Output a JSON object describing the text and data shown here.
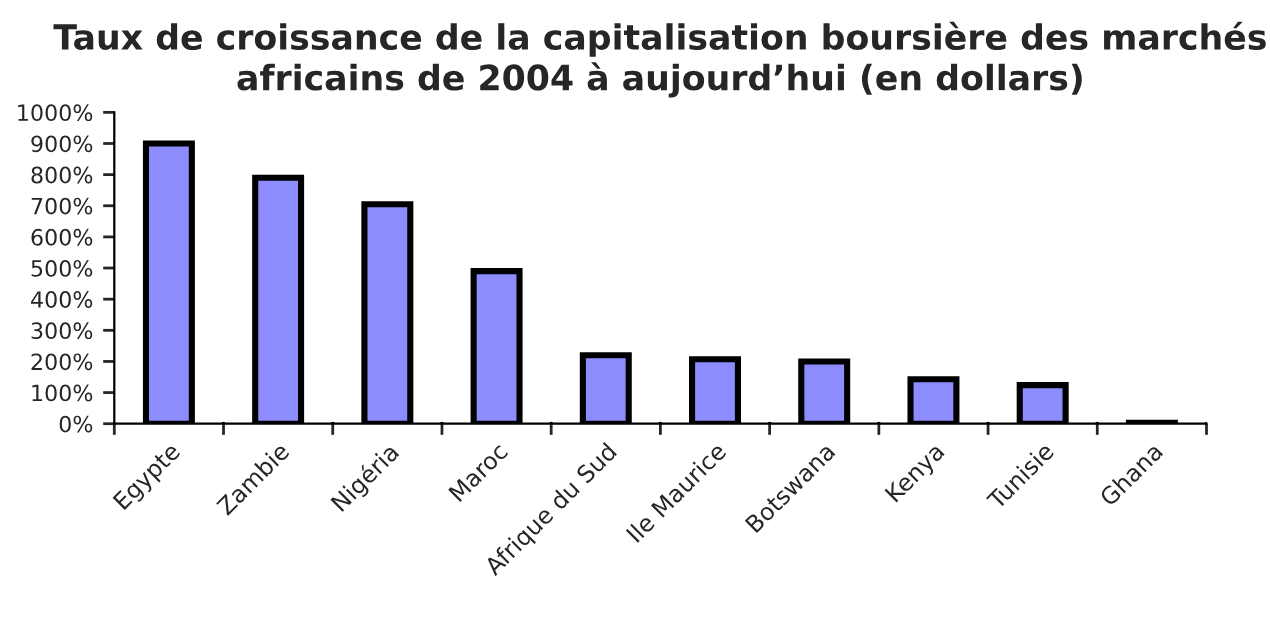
{
  "chart_data": {
    "type": "bar",
    "title": "Taux de croissance de la capitalisation boursière des marchés\nafricains de 2004 à aujourd’hui (en dollars)",
    "categories": [
      "Egypte",
      "Zambie",
      "Nigéria",
      "Maroc",
      "Afrique du Sud",
      "Ile Maurice",
      "Botswana",
      "Kenya",
      "Tunisie",
      "Ghana"
    ],
    "values": [
      900,
      790,
      705,
      490,
      220,
      207,
      200,
      143,
      124,
      3
    ],
    "color": "#8c8cff",
    "ylim": [
      0,
      1000
    ],
    "yticks": [
      {
        "value": 0,
        "label": "0%"
      },
      {
        "value": 100,
        "label": "100%"
      },
      {
        "value": 200,
        "label": "200%"
      },
      {
        "value": 300,
        "label": "300%"
      },
      {
        "value": 400,
        "label": "400%"
      },
      {
        "value": 500,
        "label": "500%"
      },
      {
        "value": 600,
        "label": "600%"
      },
      {
        "value": 700,
        "label": "700%"
      },
      {
        "value": 800,
        "label": "800%"
      },
      {
        "value": 900,
        "label": "900%"
      },
      {
        "value": 1000,
        "label": "1000%"
      }
    ],
    "grid": false
  }
}
